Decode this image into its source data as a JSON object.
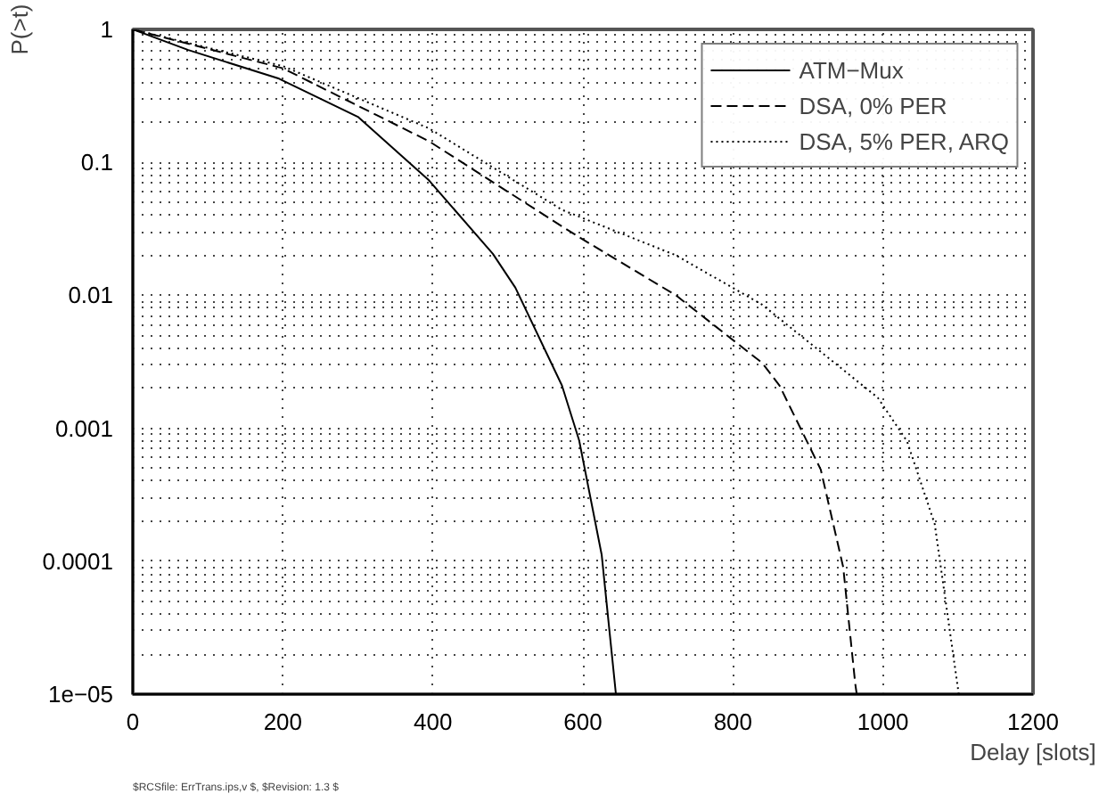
{
  "chart_data": {
    "type": "line",
    "xlabel": "Delay [slots]",
    "ylabel": "P(>t)",
    "log": "y",
    "grid": true,
    "legend": "top right",
    "marker": "none",
    "xlim": [
      0,
      1200
    ],
    "xticks": [
      0,
      200,
      400,
      600,
      800,
      1000,
      1200
    ],
    "ylim": [
      1e-05,
      1
    ],
    "yticks": [
      {
        "value": 1e-05,
        "label": "1e−05"
      },
      0.0001,
      0.001,
      0.01,
      0.1,
      1
    ],
    "series": [
      {
        "name": "ATM−Mux",
        "color": "#000000",
        "line_style": "solid",
        "x": [
          0,
          74,
          195,
          300,
          395,
          480,
          510,
          572,
          595,
          625,
          644
        ],
        "values": [
          1,
          0.7,
          0.426,
          0.22,
          0.073,
          0.0205,
          0.0114,
          0.0021,
          0.00081,
          0.000112,
          1e-05
        ]
      },
      {
        "name": "DSA, 0% PER",
        "color": "#000000",
        "line_style": "dashed",
        "x": [
          0,
          200,
          395,
          572,
          609,
          724,
          839,
          862,
          917,
          947,
          963,
          965
        ],
        "values": [
          1,
          0.51,
          0.144,
          0.033,
          0.0245,
          0.01,
          0.0031,
          0.0021,
          0.00049,
          9e-05,
          1.2e-05,
          1e-05
        ]
      },
      {
        "name": "DSA, 5% PER, ARQ",
        "color": "#000000",
        "line_style": "dotted",
        "x": [
          0,
          200,
          395,
          572,
          724,
          839,
          993,
          1032,
          1069,
          1101
        ],
        "values": [
          1,
          0.53,
          0.18,
          0.044,
          0.02,
          0.0085,
          0.0017,
          0.0008,
          0.00019,
          1e-05
        ]
      }
    ],
    "annotations": [
      "$RCSfile: ErrTrans.ips,v $, $Revision: 1.3 $"
    ]
  }
}
